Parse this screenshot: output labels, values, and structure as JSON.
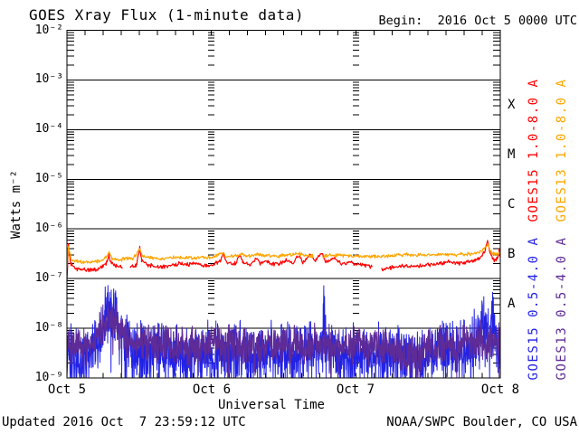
{
  "page": {
    "footer": {
      "updated": "Updated 2016 Oct  7 23:59:12 UTC",
      "org": "NOAA/SWPC Boulder, CO USA"
    }
  },
  "chart_data": {
    "type": "line",
    "title": "GOES Xray Flux (1-minute data)",
    "begin_label": "Begin:  2016 Oct 5 0000 UTC",
    "xlabel": "Universal Time",
    "ylabel": "Watts m⁻²",
    "x_range_hours": [
      0,
      72
    ],
    "y_log_range": [
      -9,
      -2
    ],
    "grid": "decade horizontal solid lines; log minor tick columns at day boundaries",
    "legend_position": "right, rotated",
    "y_tick_labels": [
      "10⁻²",
      "10⁻³",
      "10⁻⁴",
      "10⁻⁵",
      "10⁻⁶",
      "10⁻⁷",
      "10⁻⁸",
      "10⁻⁹"
    ],
    "x_ticks": [
      {
        "t": 0,
        "label": "Oct 5"
      },
      {
        "t": 24,
        "label": "Oct 6"
      },
      {
        "t": 48,
        "label": "Oct 7"
      },
      {
        "t": 72,
        "label": "Oct 8"
      }
    ],
    "flare_classes": [
      {
        "label": "X",
        "log_center": -3.5
      },
      {
        "label": "M",
        "log_center": -4.5
      },
      {
        "label": "C",
        "log_center": -5.5
      },
      {
        "label": "B",
        "log_center": -6.5
      },
      {
        "label": "A",
        "log_center": -7.5
      }
    ],
    "legend": [
      {
        "label": "GOES15 1.0-8.0 A",
        "color": "#ff0000"
      },
      {
        "label": "GOES13 1.0-8.0 A",
        "color": "#ffa500"
      },
      {
        "label": "GOES15 0.5-4.0 A",
        "color": "#2222e6"
      },
      {
        "label": "GOES13 0.5-4.0 A",
        "color": "#5e2b97"
      }
    ],
    "series": [
      {
        "name": "GOES15 0.5-4.0 A",
        "color": "#2222e6",
        "stroke_width": 1,
        "step_hours": 0.045,
        "noise_log_amp": 0.5,
        "seed": 7,
        "dropout_prob": 0.08,
        "dropout_depth": 0.7,
        "segments": [
          [
            [
              0,
              2.8e-09
            ],
            [
              2,
              2.5e-09
            ],
            [
              4,
              3.2e-09
            ],
            [
              6,
              1.3e-08
            ],
            [
              7,
              2.2e-08
            ],
            [
              8,
              1.6e-08
            ],
            [
              9,
              8e-09
            ],
            [
              11,
              4e-09
            ],
            [
              13,
              3.2e-09
            ],
            [
              15,
              3.5e-09
            ],
            [
              17,
              3.2e-09
            ],
            [
              20,
              2.8e-09
            ],
            [
              23,
              3.2e-09
            ],
            [
              26,
              3.5e-09
            ],
            [
              29,
              3.2e-09
            ],
            [
              32,
              2.8e-09
            ],
            [
              35,
              3.2e-09
            ],
            [
              38,
              3.2e-09
            ],
            [
              40,
              3.5e-09
            ],
            [
              42.4,
              4e-09
            ],
            [
              42.7,
              2.8e-08
            ],
            [
              43,
              4e-09
            ],
            [
              46,
              3.2e-09
            ],
            [
              49,
              2.8e-09
            ],
            [
              52,
              3.2e-09
            ],
            [
              55,
              2.8e-09
            ],
            [
              58,
              2.5e-09
            ],
            [
              61,
              3.2e-09
            ],
            [
              63,
              3.5e-09
            ],
            [
              65,
              3.2e-09
            ],
            [
              67,
              4e-09
            ],
            [
              68.5,
              1e-08
            ],
            [
              69.3,
              2e-08
            ],
            [
              70,
              6.3e-09
            ],
            [
              70.8,
              1.6e-08
            ],
            [
              71.4,
              5e-09
            ],
            [
              72,
              3.2e-09
            ]
          ]
        ]
      },
      {
        "name": "GOES13 0.5-4.0 A",
        "color": "#5e2b97",
        "stroke_width": 1,
        "step_hours": 0.045,
        "noise_log_amp": 0.32,
        "seed": 11,
        "dropout_prob": 0.02,
        "dropout_depth": 0.45,
        "segments": [
          [
            [
              0,
              4.5e-09
            ],
            [
              2,
              4e-09
            ],
            [
              4,
              5e-09
            ],
            [
              6,
              1.1e-08
            ],
            [
              7,
              1.6e-08
            ],
            [
              8,
              1.3e-08
            ],
            [
              9,
              8e-09
            ],
            [
              11,
              5.6e-09
            ],
            [
              14,
              5e-09
            ],
            [
              17,
              4.5e-09
            ],
            [
              20,
              4e-09
            ],
            [
              23,
              4.5e-09
            ],
            [
              26,
              5e-09
            ],
            [
              29,
              4.5e-09
            ],
            [
              32,
              4e-09
            ],
            [
              35,
              5e-09
            ],
            [
              38,
              4.5e-09
            ],
            [
              41,
              5e-09
            ],
            [
              44,
              4.5e-09
            ],
            [
              47,
              5e-09
            ],
            [
              50,
              4.5e-09
            ],
            [
              53,
              4e-09
            ],
            [
              56,
              3.2e-09
            ],
            [
              58,
              2.8e-09
            ],
            [
              60,
              4e-09
            ],
            [
              62,
              5e-09
            ],
            [
              64,
              4.5e-09
            ],
            [
              66,
              5e-09
            ],
            [
              68,
              5.6e-09
            ],
            [
              69,
              6.3e-09
            ],
            [
              70,
              5e-09
            ],
            [
              71,
              5.6e-09
            ],
            [
              72,
              5e-09
            ]
          ]
        ]
      },
      {
        "name": "GOES15 1.0-8.0 A",
        "color": "#ff0000",
        "stroke_width": 1.2,
        "step_hours": 0.1,
        "noise_log_amp": 0.035,
        "seed": 3,
        "dropout_prob": 0,
        "dropout_depth": 0,
        "segments": [
          [
            [
              0,
              9e-08
            ],
            [
              0.25,
              5e-07
            ],
            [
              0.6,
              2e-07
            ],
            [
              1.5,
              1.6e-07
            ],
            [
              3,
              1.5e-07
            ],
            [
              5,
              1.5e-07
            ],
            [
              6.5,
              2e-07
            ],
            [
              7.0,
              2.9e-07
            ],
            [
              7.4,
              2e-07
            ],
            [
              8.2,
              1.8e-07
            ],
            [
              9.2,
              1.7e-07
            ]
          ],
          [
            [
              10.5,
              1.7e-07
            ],
            [
              11.5,
              1.8e-07
            ],
            [
              12.1,
              4.2e-07
            ],
            [
              12.4,
              2.4e-07
            ],
            [
              13.5,
              1.9e-07
            ],
            [
              15,
              1.7e-07
            ],
            [
              17,
              1.8e-07
            ],
            [
              18.5,
              2e-07
            ],
            [
              20,
              1.9e-07
            ],
            [
              21,
              2.1e-07
            ],
            [
              22,
              1.9e-07
            ],
            [
              24,
              1.8e-07
            ],
            [
              25.5,
              2.3e-07
            ],
            [
              26.0,
              3.2e-07
            ],
            [
              26.5,
              2.1e-07
            ],
            [
              28,
              2e-07
            ],
            [
              28.8,
              3e-07
            ],
            [
              29.3,
              2.1e-07
            ],
            [
              30.5,
              1.9e-07
            ],
            [
              31.5,
              2.6e-07
            ],
            [
              32,
              2e-07
            ],
            [
              33,
              2.2e-07
            ],
            [
              34,
              2e-07
            ],
            [
              35,
              1.9e-07
            ],
            [
              36.5,
              2.4e-07
            ],
            [
              37.5,
              2e-07
            ],
            [
              38.5,
              3e-07
            ],
            [
              39.2,
              2.1e-07
            ],
            [
              40.5,
              3.2e-07
            ],
            [
              41.2,
              2.2e-07
            ],
            [
              42.3,
              3.4e-07
            ],
            [
              43,
              2.1e-07
            ],
            [
              44.5,
              2.6e-07
            ],
            [
              45.5,
              2e-07
            ],
            [
              47,
              2.1e-07
            ],
            [
              48.5,
              1.9e-07
            ],
            [
              50,
              1.8e-07
            ],
            [
              50.8,
              1.7e-07
            ]
          ],
          [
            [
              52.3,
              1.5e-07
            ],
            [
              54,
              1.7e-07
            ],
            [
              56,
              1.8e-07
            ],
            [
              58,
              1.8e-07
            ],
            [
              60,
              1.9e-07
            ],
            [
              62,
              2e-07
            ],
            [
              63.5,
              2.2e-07
            ],
            [
              64.5,
              2e-07
            ],
            [
              66,
              2.1e-07
            ],
            [
              67.5,
              2.3e-07
            ],
            [
              68.5,
              2.6e-07
            ],
            [
              69.4,
              3.5e-07
            ],
            [
              69.9,
              6e-07
            ],
            [
              70.4,
              3e-07
            ],
            [
              71,
              2.3e-07
            ],
            [
              71.5,
              2.6e-07
            ],
            [
              71.8,
              3.6e-07
            ],
            [
              72,
              2.8e-07
            ]
          ]
        ]
      },
      {
        "name": "GOES13 1.0-8.0 A",
        "color": "#ffa500",
        "stroke_width": 1.2,
        "step_hours": 0.1,
        "noise_log_amp": 0.03,
        "seed": 5,
        "dropout_prob": 0,
        "dropout_depth": 0,
        "segments": [
          [
            [
              0,
              1.6e-07
            ],
            [
              0.25,
              4.5e-07
            ],
            [
              0.7,
              2.4e-07
            ],
            [
              2,
              2.2e-07
            ],
            [
              4,
              2.1e-07
            ],
            [
              6,
              2.3e-07
            ],
            [
              7,
              3.3e-07
            ],
            [
              7.5,
              2.5e-07
            ],
            [
              9,
              2.4e-07
            ],
            [
              10,
              2.6e-07
            ],
            [
              11,
              2.5e-07
            ],
            [
              12.1,
              4e-07
            ],
            [
              12.5,
              2.8e-07
            ],
            [
              14,
              2.6e-07
            ],
            [
              16,
              2.5e-07
            ],
            [
              18,
              2.7e-07
            ],
            [
              20,
              2.6e-07
            ],
            [
              22,
              2.7e-07
            ],
            [
              24,
              2.6e-07
            ],
            [
              25.8,
              3.3e-07
            ],
            [
              26.3,
              2.8e-07
            ],
            [
              28.5,
              2.9e-07
            ],
            [
              29,
              3.2e-07
            ],
            [
              30,
              2.8e-07
            ],
            [
              31.5,
              3.1e-07
            ],
            [
              33,
              2.9e-07
            ],
            [
              35,
              2.8e-07
            ],
            [
              36.5,
              3e-07
            ],
            [
              38.5,
              3.2e-07
            ],
            [
              40,
              2.9e-07
            ],
            [
              41,
              2.8e-07
            ]
          ],
          [
            [
              42.5,
              2.8e-07
            ],
            [
              44,
              3e-07
            ],
            [
              46,
              2.9e-07
            ],
            [
              48,
              2.9e-07
            ],
            [
              50,
              2.8e-07
            ],
            [
              52,
              2.8e-07
            ],
            [
              54,
              2.9e-07
            ],
            [
              56,
              3e-07
            ],
            [
              58,
              3e-07
            ],
            [
              60,
              3e-07
            ],
            [
              62,
              3.1e-07
            ],
            [
              64,
              3e-07
            ],
            [
              66,
              3.1e-07
            ],
            [
              68,
              3.2e-07
            ],
            [
              69,
              3.6e-07
            ],
            [
              69.9,
              5e-07
            ],
            [
              70.5,
              3.4e-07
            ],
            [
              71.3,
              3e-07
            ],
            [
              71.8,
              3.3e-07
            ],
            [
              72,
              3.1e-07
            ]
          ]
        ]
      }
    ]
  }
}
